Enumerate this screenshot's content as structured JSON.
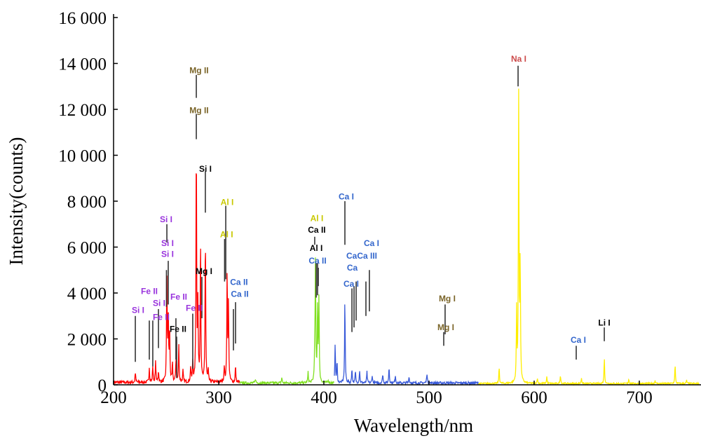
{
  "chart_data": {
    "type": "line",
    "title": "",
    "xlabel": "Wavelength/nm",
    "ylabel": "Intensity(counts)",
    "xlim": [
      200,
      757
    ],
    "ylim": [
      0,
      16000
    ],
    "x_ticks": [
      200,
      300,
      400,
      500,
      600,
      700
    ],
    "x_tick_labels": [
      "200",
      "300",
      "400",
      "500",
      "600",
      "700"
    ],
    "y_ticks": [
      0,
      2000,
      4000,
      6000,
      8000,
      10000,
      12000,
      14000,
      16000
    ],
    "y_tick_labels": [
      "0",
      "2 000",
      "4 000",
      "6 000",
      "8 000",
      "10 000",
      "12 000",
      "14 000",
      "16 000"
    ],
    "grid": false,
    "series": [
      {
        "name": "segment-1",
        "color": "#ff0000",
        "range": [
          200,
          320
        ],
        "baseline": 120,
        "peaks": [
          [
            220.7,
            450
          ],
          [
            234,
            650
          ],
          [
            237.3,
            700
          ],
          [
            240,
            900
          ],
          [
            242.7,
            500
          ],
          [
            250.7,
            4900
          ],
          [
            252,
            3000
          ],
          [
            253.3,
            2300
          ],
          [
            256,
            800
          ],
          [
            259.3,
            1000
          ],
          [
            262,
            1600
          ],
          [
            266,
            500
          ],
          [
            273.3,
            650
          ],
          [
            275.3,
            900
          ],
          [
            278.7,
            10800
          ],
          [
            280.2,
            3200
          ],
          [
            282.7,
            6500
          ],
          [
            287.3,
            6600
          ],
          [
            290,
            500
          ],
          [
            305.3,
            700
          ],
          [
            308,
            4900
          ],
          [
            309.3,
            3400
          ],
          [
            316,
            700
          ]
        ]
      },
      {
        "name": "segment-2",
        "color": "#80e020",
        "range": [
          320,
          410
        ],
        "baseline": 90,
        "peaks": [
          [
            335,
            200
          ],
          [
            360,
            250
          ],
          [
            385,
            450
          ],
          [
            391.3,
            1000
          ],
          [
            392,
            5200
          ],
          [
            394,
            3300
          ],
          [
            395.3,
            3700
          ],
          [
            404,
            150
          ]
        ]
      },
      {
        "name": "segment-3",
        "color": "#3a5bd9",
        "range": [
          410,
          547
        ],
        "baseline": 90,
        "peaks": [
          [
            410.7,
            1700
          ],
          [
            412.5,
            900
          ],
          [
            420,
            3700
          ],
          [
            426.7,
            650
          ],
          [
            430,
            500
          ],
          [
            434,
            550
          ],
          [
            441,
            480
          ],
          [
            446,
            350
          ],
          [
            456,
            400
          ],
          [
            462,
            700
          ],
          [
            468,
            350
          ],
          [
            481,
            300
          ],
          [
            498,
            450
          ]
        ]
      },
      {
        "name": "segment-4",
        "color": "#ffee00",
        "range": [
          547,
          757
        ],
        "baseline": 60,
        "peaks": [
          [
            566.7,
            700
          ],
          [
            583.3,
            3100
          ],
          [
            585.3,
            12500
          ],
          [
            586.7,
            5200
          ],
          [
            603,
            250
          ],
          [
            612,
            300
          ],
          [
            625,
            380
          ],
          [
            645,
            250
          ],
          [
            666.7,
            1100
          ],
          [
            690,
            200
          ],
          [
            715,
            150
          ],
          [
            734,
            800
          ],
          [
            745,
            150
          ]
        ]
      }
    ],
    "annotations": [
      {
        "text": "Na I",
        "color": "#cc4a4a",
        "tx": 585.3,
        "ty": 14200,
        "lx": 584.7,
        "l1": 13000,
        "l2": 13900
      },
      {
        "text": "Mg II",
        "color": "#7a6428",
        "tx": 281.3,
        "ty": 13700,
        "lx": 278.7,
        "l1": 12500,
        "l2": 13500
      },
      {
        "text": "Mg II",
        "color": "#7a6428",
        "tx": 281.3,
        "ty": 11950,
        "lx": 278.7,
        "l1": 10700,
        "l2": 11800
      },
      {
        "text": "Si I",
        "color": "#000000",
        "tx": 287.3,
        "ty": 9400,
        "lx": 287.3,
        "l1": 7500,
        "l2": 9300
      },
      {
        "text": "Al I",
        "color": "#c8c800",
        "tx": 308,
        "ty": 7950,
        "lx": 306.7,
        "l1": 4600,
        "l2": 7800
      },
      {
        "text": "Al I",
        "color": "#c8c800",
        "tx": 307.5,
        "ty": 6550,
        "lx": 305.6,
        "l1": 4500,
        "l2": 6350
      },
      {
        "text": "Si I",
        "color": "#9933dd",
        "tx": 250,
        "ty": 7200,
        "lx": 250.7,
        "l1": 6200,
        "l2": 7000
      },
      {
        "text": "Si I",
        "color": "#9933dd",
        "tx": 251.3,
        "ty": 5700,
        "lx": 252,
        "l1": 3500,
        "l2": 5400
      },
      {
        "text": "Si I",
        "color": "#9933dd",
        "tx": 251.3,
        "ty": 5250,
        "lx": 250.3,
        "l1": 3400,
        "l2": 5000
      },
      {
        "text": "Mg I",
        "color": "#000000",
        "tx": 286,
        "ty": 4950,
        "lx": 284,
        "l1": 2900,
        "l2": 4700
      },
      {
        "text": "Ca II",
        "color": "#3366cc",
        "tx": 320,
        "ty": 3950,
        "lx": 316,
        "l1": 1800,
        "l2": 3600
      },
      {
        "text": "Ca II",
        "color": "#3366cc",
        "tx": 319.3,
        "ty": 3550,
        "lx": 314,
        "l1": 1500,
        "l2": 3300
      },
      {
        "text": "Fe II",
        "color": "#9933dd",
        "tx": 276.7,
        "ty": 3350,
        "lx": 275.3,
        "l1": 700,
        "l2": 3100
      },
      {
        "text": "Fe II",
        "color": "#9933dd",
        "tx": 262,
        "ty": 3100,
        "lx": 259.3,
        "l1": 1100,
        "l2": 2900
      },
      {
        "text": "Fe II",
        "color": "#000000",
        "tx": 261.3,
        "ty": 2420,
        "lx": 260,
        "l1": 300,
        "l2": 2100
      },
      {
        "text": "Si I",
        "color": "#9933dd",
        "tx": 243.3,
        "ty": 3550,
        "lx": 242.7,
        "l1": 1600,
        "l2": 3300
      },
      {
        "text": "Si I",
        "color": "#9933dd",
        "tx": 223.3,
        "ty": 3250,
        "lx": 220.7,
        "l1": 1000,
        "l2": 3000
      },
      {
        "text": "Fe II",
        "color": "#9933dd",
        "tx": 245.3,
        "ty": 2950,
        "lx": 237.3,
        "l1": 800,
        "l2": 2800
      },
      {
        "text": "Fe II",
        "color": "#9933dd",
        "tx": 234,
        "ty": 3250,
        "lx": 234,
        "l1": 1100,
        "l2": 2800
      },
      {
        "text": "Ca II",
        "color": "#000000",
        "tx": 393.3,
        "ty": 6750,
        "lx": 391.3,
        "l1": 6100,
        "l2": 6450
      },
      {
        "text": "Al I",
        "color": "#000000",
        "tx": 392.7,
        "ty": 5950,
        "lx": 392.7,
        "l1": 3800,
        "l2": 5300
      },
      {
        "text": "Al I",
        "color": "#c8c800",
        "tx": 393.3,
        "ty": 5600,
        "lx": 394,
        "l1": 3900,
        "l2": 5300
      },
      {
        "text": "Ca II",
        "color": "#3366cc",
        "tx": 394,
        "ty": 5400,
        "lx": 394.7,
        "l1": 4300,
        "l2": 5100
      },
      {
        "text": "Ca I",
        "color": "#3366cc",
        "tx": 421.3,
        "ty": 8200,
        "lx": 420,
        "l1": 6100,
        "l2": 8000
      },
      {
        "text": "Ca",
        "color": "#3366cc",
        "tx": 427,
        "ty": 5100,
        "lx": 430.7,
        "l1": 2800,
        "l2": 4500
      },
      {
        "text": "CaCa III",
        "color": "#3366cc",
        "tx": 436,
        "ty": 4800,
        "lx": 428.7,
        "l1": 2500,
        "l2": 4300
      },
      {
        "text": "Ca I",
        "color": "#3366cc",
        "tx": 426,
        "ty": 4400,
        "lx": 426.7,
        "l1": 2300,
        "l2": 4200
      },
      {
        "text": "Ca I",
        "color": "#3366cc",
        "tx": 445.3,
        "ty": 5250,
        "lx": 440,
        "l1": 3000,
        "l2": 4500
      },
      {
        "text": "",
        "color": "#3366cc",
        "tx": 443.3,
        "ty": 4800,
        "lx": 443.3,
        "l1": 3200,
        "l2": 5000
      },
      {
        "text": "Mg I",
        "color": "#7a6428",
        "tx": 517.3,
        "ty": 3750,
        "lx": 515.3,
        "l1": 2200,
        "l2": 3500
      },
      {
        "text": "Mg I",
        "color": "#7a6428",
        "tx": 516,
        "ty": 2500,
        "lx": 514,
        "l1": 1700,
        "l2": 2300
      },
      {
        "text": "Ca I",
        "color": "#3366cc",
        "tx": 642,
        "ty": 1950,
        "lx": 640,
        "l1": 1100,
        "l2": 1700
      },
      {
        "text": "Li I",
        "color": "#000000",
        "tx": 666.7,
        "ty": 2700,
        "lx": 666.7,
        "l1": 1900,
        "l2": 2500
      }
    ]
  }
}
